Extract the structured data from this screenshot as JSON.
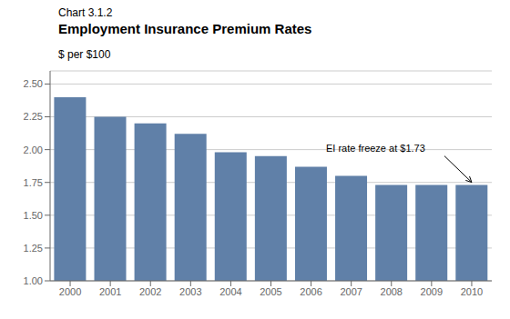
{
  "chart_data": {
    "type": "bar",
    "title": "Employment Insurance Premium Rates",
    "subtitle": "Chart 3.1.2",
    "y_label": "$ per $100",
    "categories": [
      "2000",
      "2001",
      "2002",
      "2003",
      "2004",
      "2005",
      "2006",
      "2007",
      "2008",
      "2009",
      "2010"
    ],
    "values": [
      2.4,
      2.25,
      2.2,
      2.12,
      1.98,
      1.95,
      1.87,
      1.8,
      1.73,
      1.73,
      1.73
    ],
    "color": "#6080a8",
    "ylim": [
      1.0,
      2.6
    ],
    "yticks": [
      {
        "value": 1.0,
        "label": "1.00"
      },
      1.25,
      {
        "value": 1.5,
        "label": "1.50"
      },
      1.75,
      {
        "value": 2.0,
        "label": "2.00"
      },
      2.25,
      {
        "value": 2.5,
        "label": "2.50"
      }
    ],
    "grid": true,
    "annotations": [
      {
        "text": "EI rate freeze at $1.73",
        "x": "2010",
        "y": 1.73
      }
    ]
  }
}
